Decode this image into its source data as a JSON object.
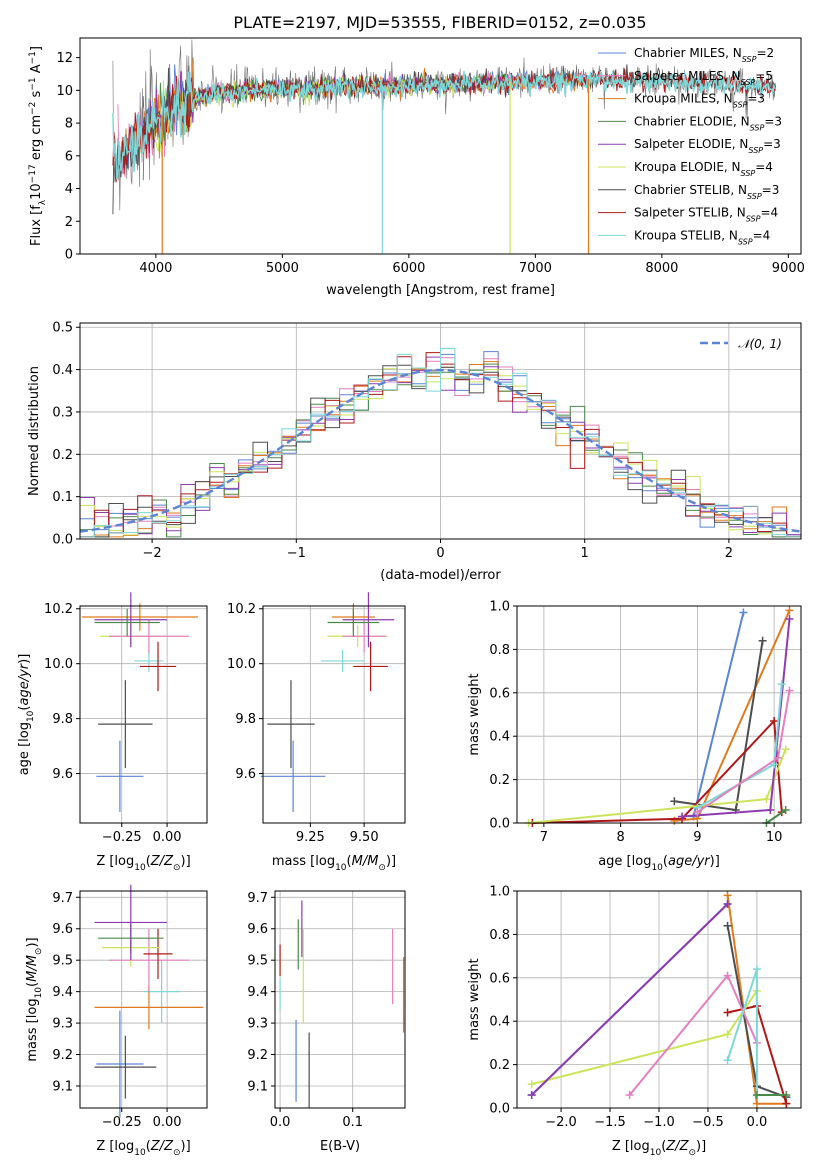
{
  "figure": {
    "title": "PLATE=2197, MJD=53555, FIBERID=0152, z=0.035"
  },
  "colors": {
    "chabrier_miles": "#5b84d4",
    "salpeter_miles": "#e37fbf",
    "kroupa_miles": "#e07a1f",
    "chabrier_elodie": "#4a8a4a",
    "salpeter_elodie": "#8e3bb0",
    "kroupa_elodie": "#cde35a",
    "chabrier_stelib": "#4d4d4d",
    "salpeter_stelib": "#b01818",
    "kroupa_stelib": "#7dd8d8",
    "data": "#707070"
  },
  "chart_data": [
    {
      "id": "spectrum",
      "type": "line",
      "title": "PLATE=2197, MJD=53555, FIBERID=0152, z=0.035",
      "xlabel": "wavelength [Angstrom, rest frame]",
      "ylabel": "Flux [f_λ10^-17 erg cm^-2 s^-1 A^-1]",
      "xlim": [
        3400,
        9100
      ],
      "ylim": [
        0,
        13.2
      ],
      "xticks": [
        4000,
        5000,
        6000,
        7000,
        8000,
        9000
      ],
      "yticks": [
        0,
        2,
        4,
        6,
        8,
        10,
        12
      ],
      "grid": false,
      "legend_position": "right",
      "legend": [
        {
          "label": "Chabrier MILES, N_SSP=2",
          "color_key": "chabrier_miles"
        },
        {
          "label": "Salpeter MILES, N_SSP=5",
          "color_key": "salpeter_miles"
        },
        {
          "label": "Kroupa MILES, N_SSP=3",
          "color_key": "kroupa_miles"
        },
        {
          "label": "Chabrier ELODIE, N_SSP=3",
          "color_key": "chabrier_elodie"
        },
        {
          "label": "Salpeter ELODIE, N_SSP=3",
          "color_key": "salpeter_elodie"
        },
        {
          "label": "Kroupa ELODIE, N_SSP=4",
          "color_key": "kroupa_elodie"
        },
        {
          "label": "Chabrier STELIB, N_SSP=3",
          "color_key": "chabrier_stelib"
        },
        {
          "label": "Salpeter STELIB, N_SSP=4",
          "color_key": "salpeter_stelib"
        },
        {
          "label": "Kroupa STELIB, N_SSP=4",
          "color_key": "kroupa_stelib"
        }
      ],
      "continuum": {
        "x": [
          3650,
          3800,
          3950,
          4100,
          4300,
          4500,
          4800,
          5200,
          5600,
          6000,
          6500,
          7000,
          7500,
          8000,
          8400,
          8700,
          8900
        ],
        "y": [
          5.5,
          6.5,
          7.8,
          8.8,
          9.6,
          9.9,
          10.1,
          10.2,
          10.3,
          10.4,
          10.5,
          10.6,
          10.7,
          10.6,
          10.5,
          10.3,
          10.2
        ]
      },
      "drops": [
        {
          "x": 4050,
          "series": "kroupa_miles"
        },
        {
          "x": 5790,
          "series": "kroupa_stelib"
        },
        {
          "x": 6800,
          "series": "kroupa_elodie"
        },
        {
          "x": 7420,
          "series": "kroupa_miles"
        }
      ]
    },
    {
      "id": "residuals",
      "type": "line",
      "xlabel": "(data-model)/error",
      "ylabel": "Normed distribution",
      "xlim": [
        -2.5,
        2.5
      ],
      "ylim": [
        0,
        0.51
      ],
      "xticks": [
        -2,
        -1,
        0,
        1,
        2
      ],
      "yticks": [
        0.0,
        0.1,
        0.2,
        0.3,
        0.4,
        0.5
      ],
      "grid": true,
      "legend_position": "top-right",
      "legend": [
        {
          "label": "𝒩(0, 1)",
          "color_key": "chabrier_miles"
        }
      ],
      "bin_width": 0.1
    },
    {
      "id": "age_vs_Z",
      "type": "scatter",
      "xlabel": "Z [log10(Z/Z⊙)]",
      "ylabel": "age  [log10(age/yr)]",
      "xlim": [
        -0.48,
        0.22
      ],
      "ylim": [
        9.42,
        10.21
      ],
      "xticks": [
        -0.25,
        0.0
      ],
      "yticks": [
        9.6,
        9.8,
        10.0,
        10.2
      ],
      "grid": true,
      "points": [
        {
          "series": "chabrier_miles",
          "x": -0.26,
          "y": 9.59,
          "xerr": 0.13,
          "yerr": 0.13
        },
        {
          "series": "chabrier_stelib",
          "x": -0.23,
          "y": 9.78,
          "xerr": 0.15,
          "yerr": 0.16
        },
        {
          "series": "kroupa_stelib",
          "x": -0.1,
          "y": 10.01,
          "xerr": 0.08,
          "yerr": 0.04
        },
        {
          "series": "salpeter_stelib",
          "x": -0.05,
          "y": 9.99,
          "xerr": 0.1,
          "yerr": 0.09
        },
        {
          "series": "kroupa_elodie",
          "x": -0.2,
          "y": 10.1,
          "xerr": 0.17,
          "yerr": 0.04
        },
        {
          "series": "salpeter_miles",
          "x": -0.1,
          "y": 10.1,
          "xerr": 0.22,
          "yerr": 0.06
        },
        {
          "series": "kroupa_miles",
          "x": -0.15,
          "y": 10.17,
          "xerr": 0.32,
          "yerr": 0.05
        },
        {
          "series": "salpeter_elodie",
          "x": -0.2,
          "y": 10.16,
          "xerr": 0.2,
          "yerr": 0.1
        },
        {
          "series": "chabrier_elodie",
          "x": -0.22,
          "y": 10.15,
          "xerr": 0.18,
          "yerr": 0.05
        }
      ]
    },
    {
      "id": "age_vs_mass",
      "type": "scatter",
      "xlabel": "mass [log10(M/M⊙)]",
      "ylabel": "",
      "xlim": [
        9.03,
        9.69
      ],
      "ylim": [
        9.42,
        10.21
      ],
      "xticks": [
        9.25,
        9.5
      ],
      "yticks": [
        9.6,
        9.8,
        10.0,
        10.2
      ],
      "grid": true,
      "points": [
        {
          "series": "chabrier_miles",
          "x": 9.17,
          "y": 9.59,
          "xerr": 0.15,
          "yerr": 0.13
        },
        {
          "series": "chabrier_stelib",
          "x": 9.16,
          "y": 9.78,
          "xerr": 0.11,
          "yerr": 0.16
        },
        {
          "series": "kroupa_stelib",
          "x": 9.4,
          "y": 10.01,
          "xerr": 0.1,
          "yerr": 0.04
        },
        {
          "series": "salpeter_stelib",
          "x": 9.53,
          "y": 9.99,
          "xerr": 0.08,
          "yerr": 0.09
        },
        {
          "series": "kroupa_elodie",
          "x": 9.47,
          "y": 10.1,
          "xerr": 0.14,
          "yerr": 0.04
        },
        {
          "series": "salpeter_miles",
          "x": 9.5,
          "y": 10.1,
          "xerr": 0.1,
          "yerr": 0.06
        },
        {
          "series": "kroupa_miles",
          "x": 9.45,
          "y": 10.17,
          "xerr": 0.1,
          "yerr": 0.05
        },
        {
          "series": "salpeter_elodie",
          "x": 9.52,
          "y": 10.16,
          "xerr": 0.12,
          "yerr": 0.1
        },
        {
          "series": "chabrier_elodie",
          "x": 9.45,
          "y": 10.15,
          "xerr": 0.12,
          "yerr": 0.05
        }
      ]
    },
    {
      "id": "weight_vs_age",
      "type": "line",
      "xlabel": "age  [log10(age/yr)]",
      "ylabel": "mass weight",
      "xlim": [
        6.65,
        10.35
      ],
      "ylim": [
        0,
        1.0
      ],
      "xticks": [
        7,
        8,
        9,
        10
      ],
      "yticks": [
        0.0,
        0.2,
        0.4,
        0.6,
        0.8,
        1.0
      ],
      "grid": true,
      "series": [
        {
          "color_key": "chabrier_miles",
          "x": [
            8.95,
            9.6
          ],
          "y": [
            0.03,
            0.97
          ]
        },
        {
          "color_key": "kroupa_miles",
          "x": [
            8.7,
            9.0,
            10.2
          ],
          "y": [
            0.01,
            0.02,
            0.98
          ]
        },
        {
          "color_key": "chabrier_stelib",
          "x": [
            8.7,
            9.5,
            9.85
          ],
          "y": [
            0.1,
            0.06,
            0.84
          ]
        },
        {
          "color_key": "salpeter_stelib",
          "x": [
            6.85,
            8.8,
            10.0,
            10.1
          ],
          "y": [
            0.0,
            0.02,
            0.47,
            0.05
          ]
        },
        {
          "color_key": "kroupa_elodie",
          "x": [
            6.8,
            9.9,
            10.15
          ],
          "y": [
            0.0,
            0.11,
            0.34
          ]
        },
        {
          "color_key": "salpeter_elodie",
          "x": [
            8.8,
            9.95,
            10.2
          ],
          "y": [
            0.03,
            0.06,
            0.94
          ]
        },
        {
          "color_key": "kroupa_stelib",
          "x": [
            9.0,
            10.0,
            10.1
          ],
          "y": [
            0.07,
            0.27,
            0.64
          ]
        },
        {
          "color_key": "salpeter_miles",
          "x": [
            9.0,
            10.05,
            10.2
          ],
          "y": [
            0.05,
            0.3,
            0.61
          ]
        },
        {
          "color_key": "chabrier_elodie",
          "x": [
            9.9,
            10.15
          ],
          "y": [
            0.0,
            0.06
          ]
        }
      ]
    },
    {
      "id": "mass_vs_Z",
      "type": "scatter",
      "xlabel": "Z [log10(Z/Z⊙)]",
      "ylabel": "mass [log10(M/M⊙)]",
      "xlim": [
        -0.48,
        0.22
      ],
      "ylim": [
        9.03,
        9.72
      ],
      "xticks": [
        -0.25,
        0.0
      ],
      "yticks": [
        9.1,
        9.2,
        9.3,
        9.4,
        9.5,
        9.6,
        9.7
      ],
      "grid": true,
      "points": [
        {
          "series": "chabrier_miles",
          "x": -0.26,
          "y": 9.17,
          "xerr": 0.13,
          "yerr": 0.17
        },
        {
          "series": "chabrier_stelib",
          "x": -0.23,
          "y": 9.16,
          "xerr": 0.17,
          "yerr": 0.1
        },
        {
          "series": "kroupa_stelib",
          "x": -0.03,
          "y": 9.4,
          "xerr": 0.1,
          "yerr": 0.1
        },
        {
          "series": "kroupa_miles",
          "x": -0.1,
          "y": 9.35,
          "xerr": 0.3,
          "yerr": 0.07
        },
        {
          "series": "salpeter_miles",
          "x": -0.1,
          "y": 9.5,
          "xerr": 0.22,
          "yerr": 0.1
        },
        {
          "series": "salpeter_stelib",
          "x": -0.05,
          "y": 9.52,
          "xerr": 0.08,
          "yerr": 0.08
        },
        {
          "series": "kroupa_elodie",
          "x": -0.2,
          "y": 9.54,
          "xerr": 0.16,
          "yerr": 0.06
        },
        {
          "series": "chabrier_elodie",
          "x": -0.2,
          "y": 9.57,
          "xerr": 0.18,
          "yerr": 0.05
        },
        {
          "series": "salpeter_elodie",
          "x": -0.2,
          "y": 9.62,
          "xerr": 0.2,
          "yerr": 0.12
        }
      ]
    },
    {
      "id": "mass_vs_ebv",
      "type": "scatter",
      "xlabel": "E(B-V)",
      "ylabel": "",
      "xlim": [
        -0.007,
        0.172
      ],
      "ylim": [
        9.03,
        9.72
      ],
      "xticks": [
        0.0,
        0.1
      ],
      "yticks": [
        9.1,
        9.2,
        9.3,
        9.4,
        9.5,
        9.6,
        9.7
      ],
      "grid": true,
      "points": [
        {
          "series": "chabrier_miles",
          "x": 0.022,
          "y": 9.18,
          "yerr": 0.13
        },
        {
          "series": "chabrier_stelib",
          "x": 0.04,
          "y": 9.15,
          "yerr": 0.12
        },
        {
          "series": "kroupa_stelib",
          "x": 0.0,
          "y": 9.39,
          "yerr": 0.05
        },
        {
          "series": "salpeter_stelib",
          "x": 0.0,
          "y": 9.5,
          "yerr": 0.05
        },
        {
          "series": "chabrier_elodie",
          "x": 0.025,
          "y": 9.55,
          "yerr": 0.08
        },
        {
          "series": "kroupa_elodie",
          "x": 0.032,
          "y": 9.45,
          "yerr": 0.15
        },
        {
          "series": "salpeter_elodie",
          "x": 0.03,
          "y": 9.6,
          "yerr": 0.09
        },
        {
          "series": "salpeter_miles",
          "x": 0.155,
          "y": 9.48,
          "yerr": 0.12
        },
        {
          "series": "kroupa_miles",
          "x": 0.17,
          "y": 9.39,
          "yerr": 0.12
        }
      ]
    },
    {
      "id": "weight_vs_Z",
      "type": "line",
      "xlabel": "Z [log10(Z/Z⊙)]",
      "ylabel": "mass weight",
      "xlim": [
        -2.45,
        0.45
      ],
      "ylim": [
        0,
        1.0
      ],
      "xticks": [
        -2.0,
        -1.5,
        -1.0,
        -0.5,
        0.0
      ],
      "yticks": [
        0.0,
        0.2,
        0.4,
        0.6,
        0.8,
        1.0
      ],
      "grid": true,
      "series": [
        {
          "color_key": "chabrier_miles",
          "x": [
            -2.3,
            -0.3
          ],
          "y": [
            0.06,
            0.94
          ]
        },
        {
          "color_key": "kroupa_miles",
          "x": [
            -0.3,
            0.0,
            0.3
          ],
          "y": [
            0.98,
            0.02,
            0.02
          ]
        },
        {
          "color_key": "chabrier_stelib",
          "x": [
            -0.3,
            0.0,
            0.3
          ],
          "y": [
            0.84,
            0.1,
            0.05
          ]
        },
        {
          "color_key": "salpeter_stelib",
          "x": [
            -0.3,
            0.0,
            0.3
          ],
          "y": [
            0.44,
            0.47,
            0.02
          ]
        },
        {
          "color_key": "kroupa_elodie",
          "x": [
            -2.3,
            -0.3,
            0.0
          ],
          "y": [
            0.11,
            0.34,
            0.54
          ]
        },
        {
          "color_key": "salpeter_miles",
          "x": [
            -1.3,
            -0.3,
            0.0
          ],
          "y": [
            0.06,
            0.61,
            0.3
          ]
        },
        {
          "color_key": "kroupa_stelib",
          "x": [
            -0.3,
            0.0,
            0.0
          ],
          "y": [
            0.22,
            0.64,
            0.06
          ]
        },
        {
          "color_key": "chabrier_elodie",
          "x": [
            0.0,
            0.3
          ],
          "y": [
            0.06,
            0.06
          ]
        },
        {
          "color_key": "salpeter_elodie",
          "x": [
            -2.3,
            -0.3
          ],
          "y": [
            0.06,
            0.94
          ]
        }
      ]
    }
  ]
}
